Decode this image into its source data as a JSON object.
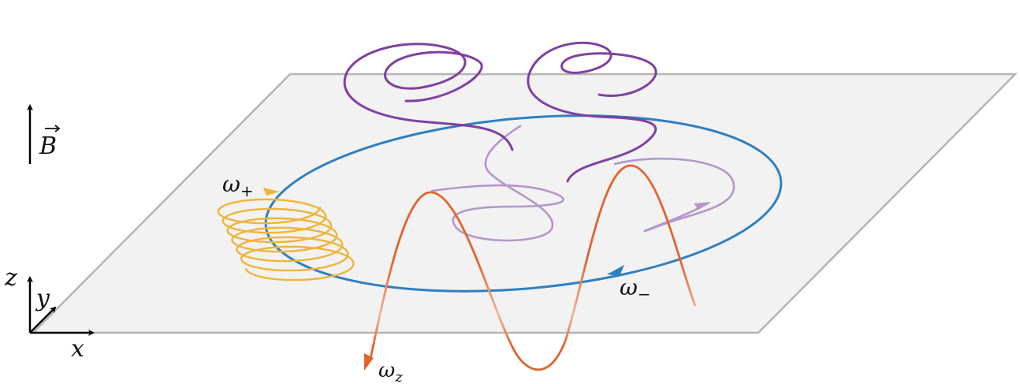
{
  "labels": {
    "field_symbol": "B",
    "omega": "ω",
    "plus_sub": "+",
    "minus_sub": "−",
    "z_sub": "z",
    "axis_x": "x",
    "axis_y": "y",
    "axis_z": "z"
  },
  "colors": {
    "plane_fill": "#f2f2f2",
    "plane_edge": "#b4b4b4",
    "cyclotron_orbit": "#f0b43c",
    "magnetron_orbit": "#2f7fc1",
    "axial_oscillation": "#e0642e",
    "combined_motion": "#8040a0",
    "axes": "#000000"
  }
}
